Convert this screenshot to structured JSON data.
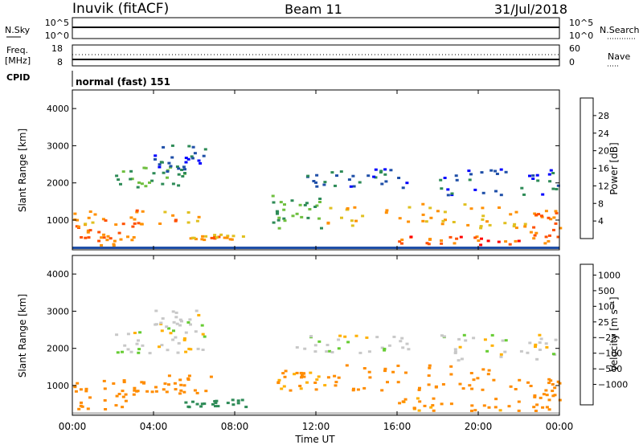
{
  "header": {
    "station": "Inuvik (fitACF)",
    "beam": "Beam 11",
    "date": "31/Jul/2018"
  },
  "status_strip": {
    "nsky_label": "N.Sky",
    "nsky_ticks": [
      "10^5",
      "10^0"
    ],
    "nsearch_label": "N.Search",
    "nsearch_ticks": [
      "10^5",
      "10^0"
    ],
    "freq_label": "Freq.",
    "freq_unit": "[MHz]",
    "freq_ticks": [
      "18",
      "8"
    ],
    "nave_label": "Nave",
    "nave_ticks": [
      "60",
      "0"
    ],
    "cpid_label": "CPID",
    "cpid_value": "normal (fast) 151"
  },
  "colors": {
    "power": [
      "#0000ff",
      "#1f4fa8",
      "#2e8b57",
      "#6fbf3f",
      "#e0c020",
      "#ff9000",
      "#ff5000",
      "#ff0000"
    ],
    "velocity": [
      "#ff0000",
      "#ff4500",
      "#ff8c00",
      "#ffb000",
      "#c8c8c8",
      "#66cc33",
      "#2e8b57",
      "#1f4fa8",
      "#0000ff"
    ]
  },
  "chart_data": [
    {
      "type": "heatmap",
      "panel": "power",
      "ylabel": "Slant Range [km]",
      "xlabel": "",
      "y_ticks": [
        "1000",
        "2000",
        "3000",
        "4000"
      ],
      "ylim": [
        200,
        4500
      ],
      "colorbar_label": "Power [dB]",
      "colorbar_ticks": [
        "4",
        "8",
        "12",
        "16",
        "20",
        "24",
        "28"
      ],
      "zlim": [
        0,
        32
      ],
      "blobs": [
        {
          "t0": 0.0,
          "t1": 3.0,
          "r0": 300,
          "r1": 900,
          "v": 24
        },
        {
          "t0": 0.0,
          "t1": 6.8,
          "r0": 900,
          "r1": 1300,
          "v": 22
        },
        {
          "t0": 2.0,
          "t1": 5.5,
          "r0": 1900,
          "r1": 2500,
          "v": 12
        },
        {
          "t0": 4.0,
          "t1": 6.5,
          "r0": 2300,
          "r1": 3050,
          "v": 6
        },
        {
          "t0": 5.6,
          "t1": 8.5,
          "r0": 500,
          "r1": 650,
          "v": 22
        },
        {
          "t0": 9.8,
          "t1": 12.2,
          "r0": 800,
          "r1": 1700,
          "v": 12
        },
        {
          "t0": 11.0,
          "t1": 16.5,
          "r0": 1900,
          "r1": 2400,
          "v": 7
        },
        {
          "t0": 12.5,
          "t1": 22.5,
          "r0": 800,
          "r1": 1500,
          "v": 20
        },
        {
          "t0": 16.0,
          "t1": 22.0,
          "r0": 350,
          "r1": 600,
          "v": 26
        },
        {
          "t0": 18.0,
          "t1": 24.0,
          "r0": 1700,
          "r1": 2400,
          "v": 6
        },
        {
          "t0": 22.5,
          "t1": 24.0,
          "r0": 400,
          "r1": 1300,
          "v": 24
        }
      ]
    },
    {
      "type": "heatmap",
      "panel": "velocity",
      "ylabel": "Slant Range [km]",
      "xlabel": "Time UT",
      "x_ticks": [
        "00:00",
        "04:00",
        "08:00",
        "12:00",
        "16:00",
        "20:00",
        "00:00"
      ],
      "y_ticks": [
        "1000",
        "2000",
        "3000",
        "4000"
      ],
      "ylim": [
        200,
        4500
      ],
      "colorbar_label": "Velocity [m s⁻¹]",
      "colorbar_ticks": [
        "1000",
        "500",
        "100",
        "25",
        "−25",
        "−100",
        "−500",
        "−1000"
      ],
      "blobs": [
        {
          "t0": 0.0,
          "t1": 3.2,
          "r0": 300,
          "r1": 1200,
          "v": -150
        },
        {
          "t0": 2.0,
          "t1": 6.5,
          "r0": 1900,
          "r1": 2500,
          "v": 0
        },
        {
          "t0": 4.0,
          "t1": 6.5,
          "r0": 2400,
          "r1": 3050,
          "v": 0
        },
        {
          "t0": 3.0,
          "t1": 6.8,
          "r0": 800,
          "r1": 1300,
          "v": -200
        },
        {
          "t0": 5.5,
          "t1": 8.5,
          "r0": 450,
          "r1": 650,
          "v": 150
        },
        {
          "t0": 10.0,
          "t1": 12.5,
          "r0": 900,
          "r1": 1500,
          "v": -120
        },
        {
          "t0": 11.0,
          "t1": 16.5,
          "r0": 1900,
          "r1": 2400,
          "v": 0
        },
        {
          "t0": 12.5,
          "t1": 22.5,
          "r0": 900,
          "r1": 1600,
          "v": -200
        },
        {
          "t0": 16.0,
          "t1": 22.0,
          "r0": 350,
          "r1": 700,
          "v": -120
        },
        {
          "t0": 18.0,
          "t1": 24.0,
          "r0": 1700,
          "r1": 2400,
          "v": 0
        },
        {
          "t0": 22.5,
          "t1": 24.0,
          "r0": 350,
          "r1": 1200,
          "v": -300
        }
      ]
    }
  ]
}
